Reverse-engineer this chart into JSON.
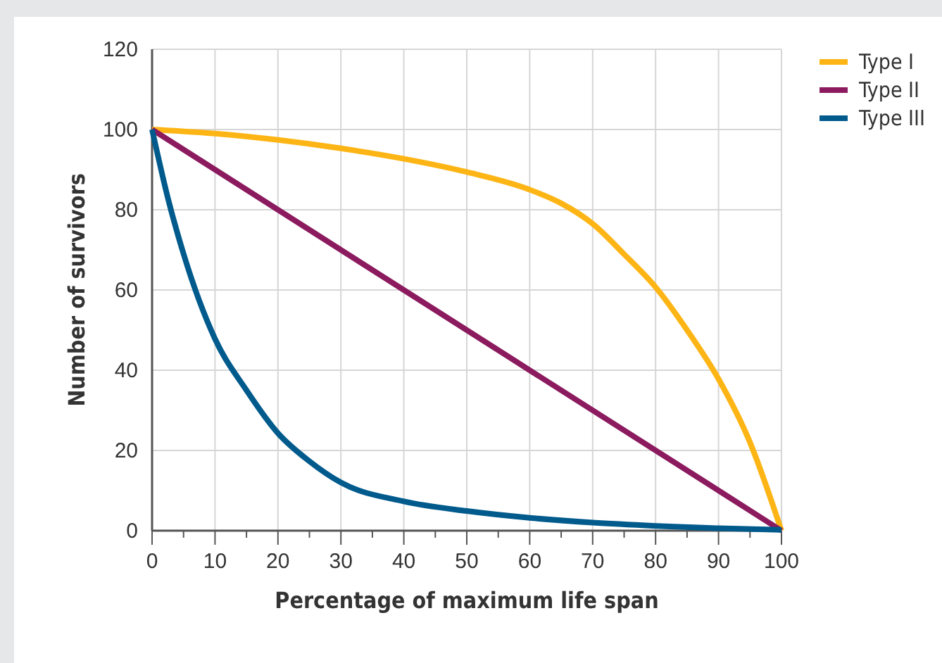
{
  "chart_data": {
    "type": "line",
    "xlabel": "Percentage of maximum life span",
    "ylabel": "Number of survivors",
    "xlim": [
      0,
      100
    ],
    "xticks": [
      0,
      10,
      20,
      30,
      40,
      50,
      60,
      70,
      80,
      90,
      100
    ],
    "ylim": [
      0,
      120
    ],
    "yticks": [
      0,
      20,
      40,
      60,
      80,
      100,
      120
    ],
    "grid": true,
    "legend": "top right",
    "marker": "none",
    "line_style": "solid",
    "series": [
      {
        "name": "Type I",
        "color": "#fdb515",
        "x": [
          0,
          10,
          20,
          30,
          40,
          50,
          60,
          65,
          70,
          75,
          80,
          85,
          90,
          95,
          100
        ],
        "values": [
          100,
          99,
          97.4,
          95.3,
          92.7,
          89.4,
          85,
          81.6,
          76.5,
          68.9,
          60.7,
          50,
          37.8,
          22,
          0
        ]
      },
      {
        "name": "Type II",
        "color": "#8b1a5e",
        "x": [
          0,
          100
        ],
        "values": [
          100,
          0
        ]
      },
      {
        "name": "Type III",
        "color": "#005a8c",
        "x": [
          0,
          2.5,
          5,
          10,
          15,
          20,
          25,
          30,
          40,
          50,
          60,
          70,
          80,
          90,
          100
        ],
        "values": [
          100,
          83,
          69,
          47.8,
          35,
          24.3,
          17.3,
          12,
          7.3,
          4.9,
          3.2,
          2,
          1.2,
          0.6,
          0.2
        ]
      }
    ]
  }
}
